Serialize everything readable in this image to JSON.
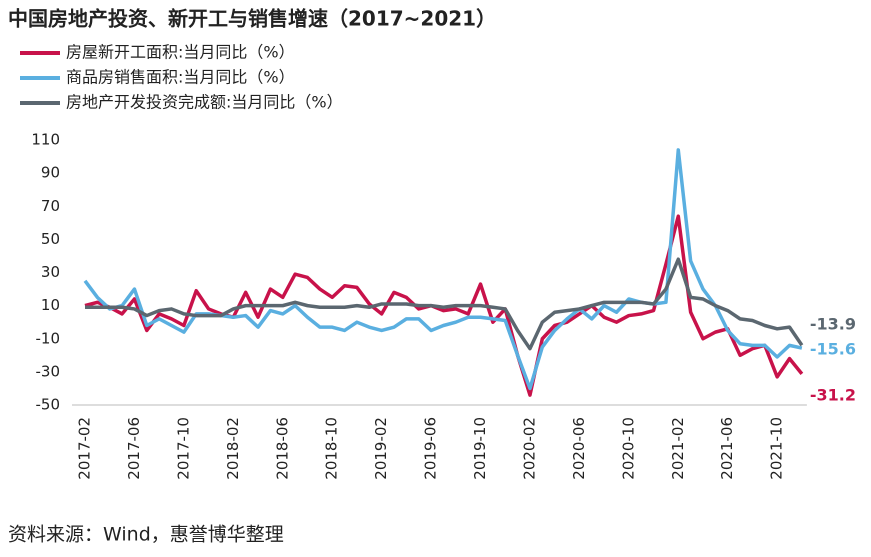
{
  "chart_data": {
    "type": "line",
    "title": "中国房地产投资、新开工与销售增速（2017~2021）",
    "source": "资料来源：Wind，惠誉博华整理",
    "categories": [
      "2017-02",
      null,
      null,
      null,
      "2017-06",
      null,
      null,
      null,
      "2017-10",
      null,
      null,
      null,
      "2018-02",
      null,
      null,
      null,
      "2018-06",
      null,
      null,
      null,
      "2018-10",
      null,
      null,
      null,
      "2019-02",
      null,
      null,
      null,
      "2019-06",
      null,
      null,
      null,
      "2019-10",
      null,
      null,
      null,
      "2020-02",
      null,
      null,
      null,
      "2020-06",
      null,
      null,
      null,
      "2020-10",
      null,
      null,
      null,
      "2021-02",
      null,
      null,
      null,
      "2021-06",
      null,
      null,
      null,
      "2021-10",
      null,
      null
    ],
    "ylim": [
      -50,
      110
    ],
    "yticks": [
      110,
      90,
      70,
      50,
      30,
      10,
      -10,
      -30,
      -50
    ],
    "grid": false,
    "legend": "top-left",
    "series": [
      {
        "name": "房屋新开工面积:当月同比（%）",
        "color": "#c8124a",
        "values": [
          10,
          12,
          9,
          5,
          14,
          -5,
          5,
          2,
          -2,
          19,
          8,
          5,
          3,
          18,
          3,
          20,
          15,
          29,
          27,
          20,
          15,
          22,
          21,
          11,
          5,
          18,
          15,
          8,
          10,
          7,
          8,
          5,
          23,
          0,
          8,
          -20,
          -44,
          -10,
          -2,
          0,
          5,
          10,
          3,
          0,
          4,
          5,
          7,
          35,
          64,
          6,
          -10,
          -6,
          -4,
          -20,
          -16,
          -14,
          -33,
          -22,
          -31.2
        ]
      },
      {
        "name": "商品房销售面积:当月同比（%）",
        "color": "#5aafe0",
        "values": [
          25,
          15,
          8,
          10,
          20,
          -2,
          2,
          -2,
          -6,
          5,
          5,
          4,
          3,
          4,
          -3,
          7,
          5,
          10,
          3,
          -3,
          -3,
          -5,
          0,
          -3,
          -5,
          -3,
          2,
          2,
          -5,
          -2,
          0,
          3,
          3,
          2,
          1,
          -20,
          -40,
          -15,
          -5,
          2,
          8,
          2,
          10,
          6,
          14,
          12,
          11,
          12,
          104,
          37,
          20,
          10,
          -5,
          -13,
          -14,
          -14,
          -21,
          -14,
          -15.6
        ]
      },
      {
        "name": "房地产开发投资完成额:当月同比（%）",
        "color": "#5b6770",
        "values": [
          9,
          9,
          9,
          9,
          8,
          4,
          7,
          8,
          5,
          4,
          4,
          4,
          8,
          10,
          10,
          10,
          10,
          12,
          10,
          9,
          9,
          9,
          10,
          9,
          11,
          11,
          11,
          10,
          10,
          9,
          10,
          10,
          10,
          9,
          8,
          -5,
          -16,
          0,
          6,
          7,
          8,
          10,
          12,
          12,
          12,
          12,
          11,
          20,
          38,
          15,
          14,
          10,
          7,
          2,
          1,
          -2,
          -4,
          -3,
          -13.9
        ]
      }
    ]
  }
}
